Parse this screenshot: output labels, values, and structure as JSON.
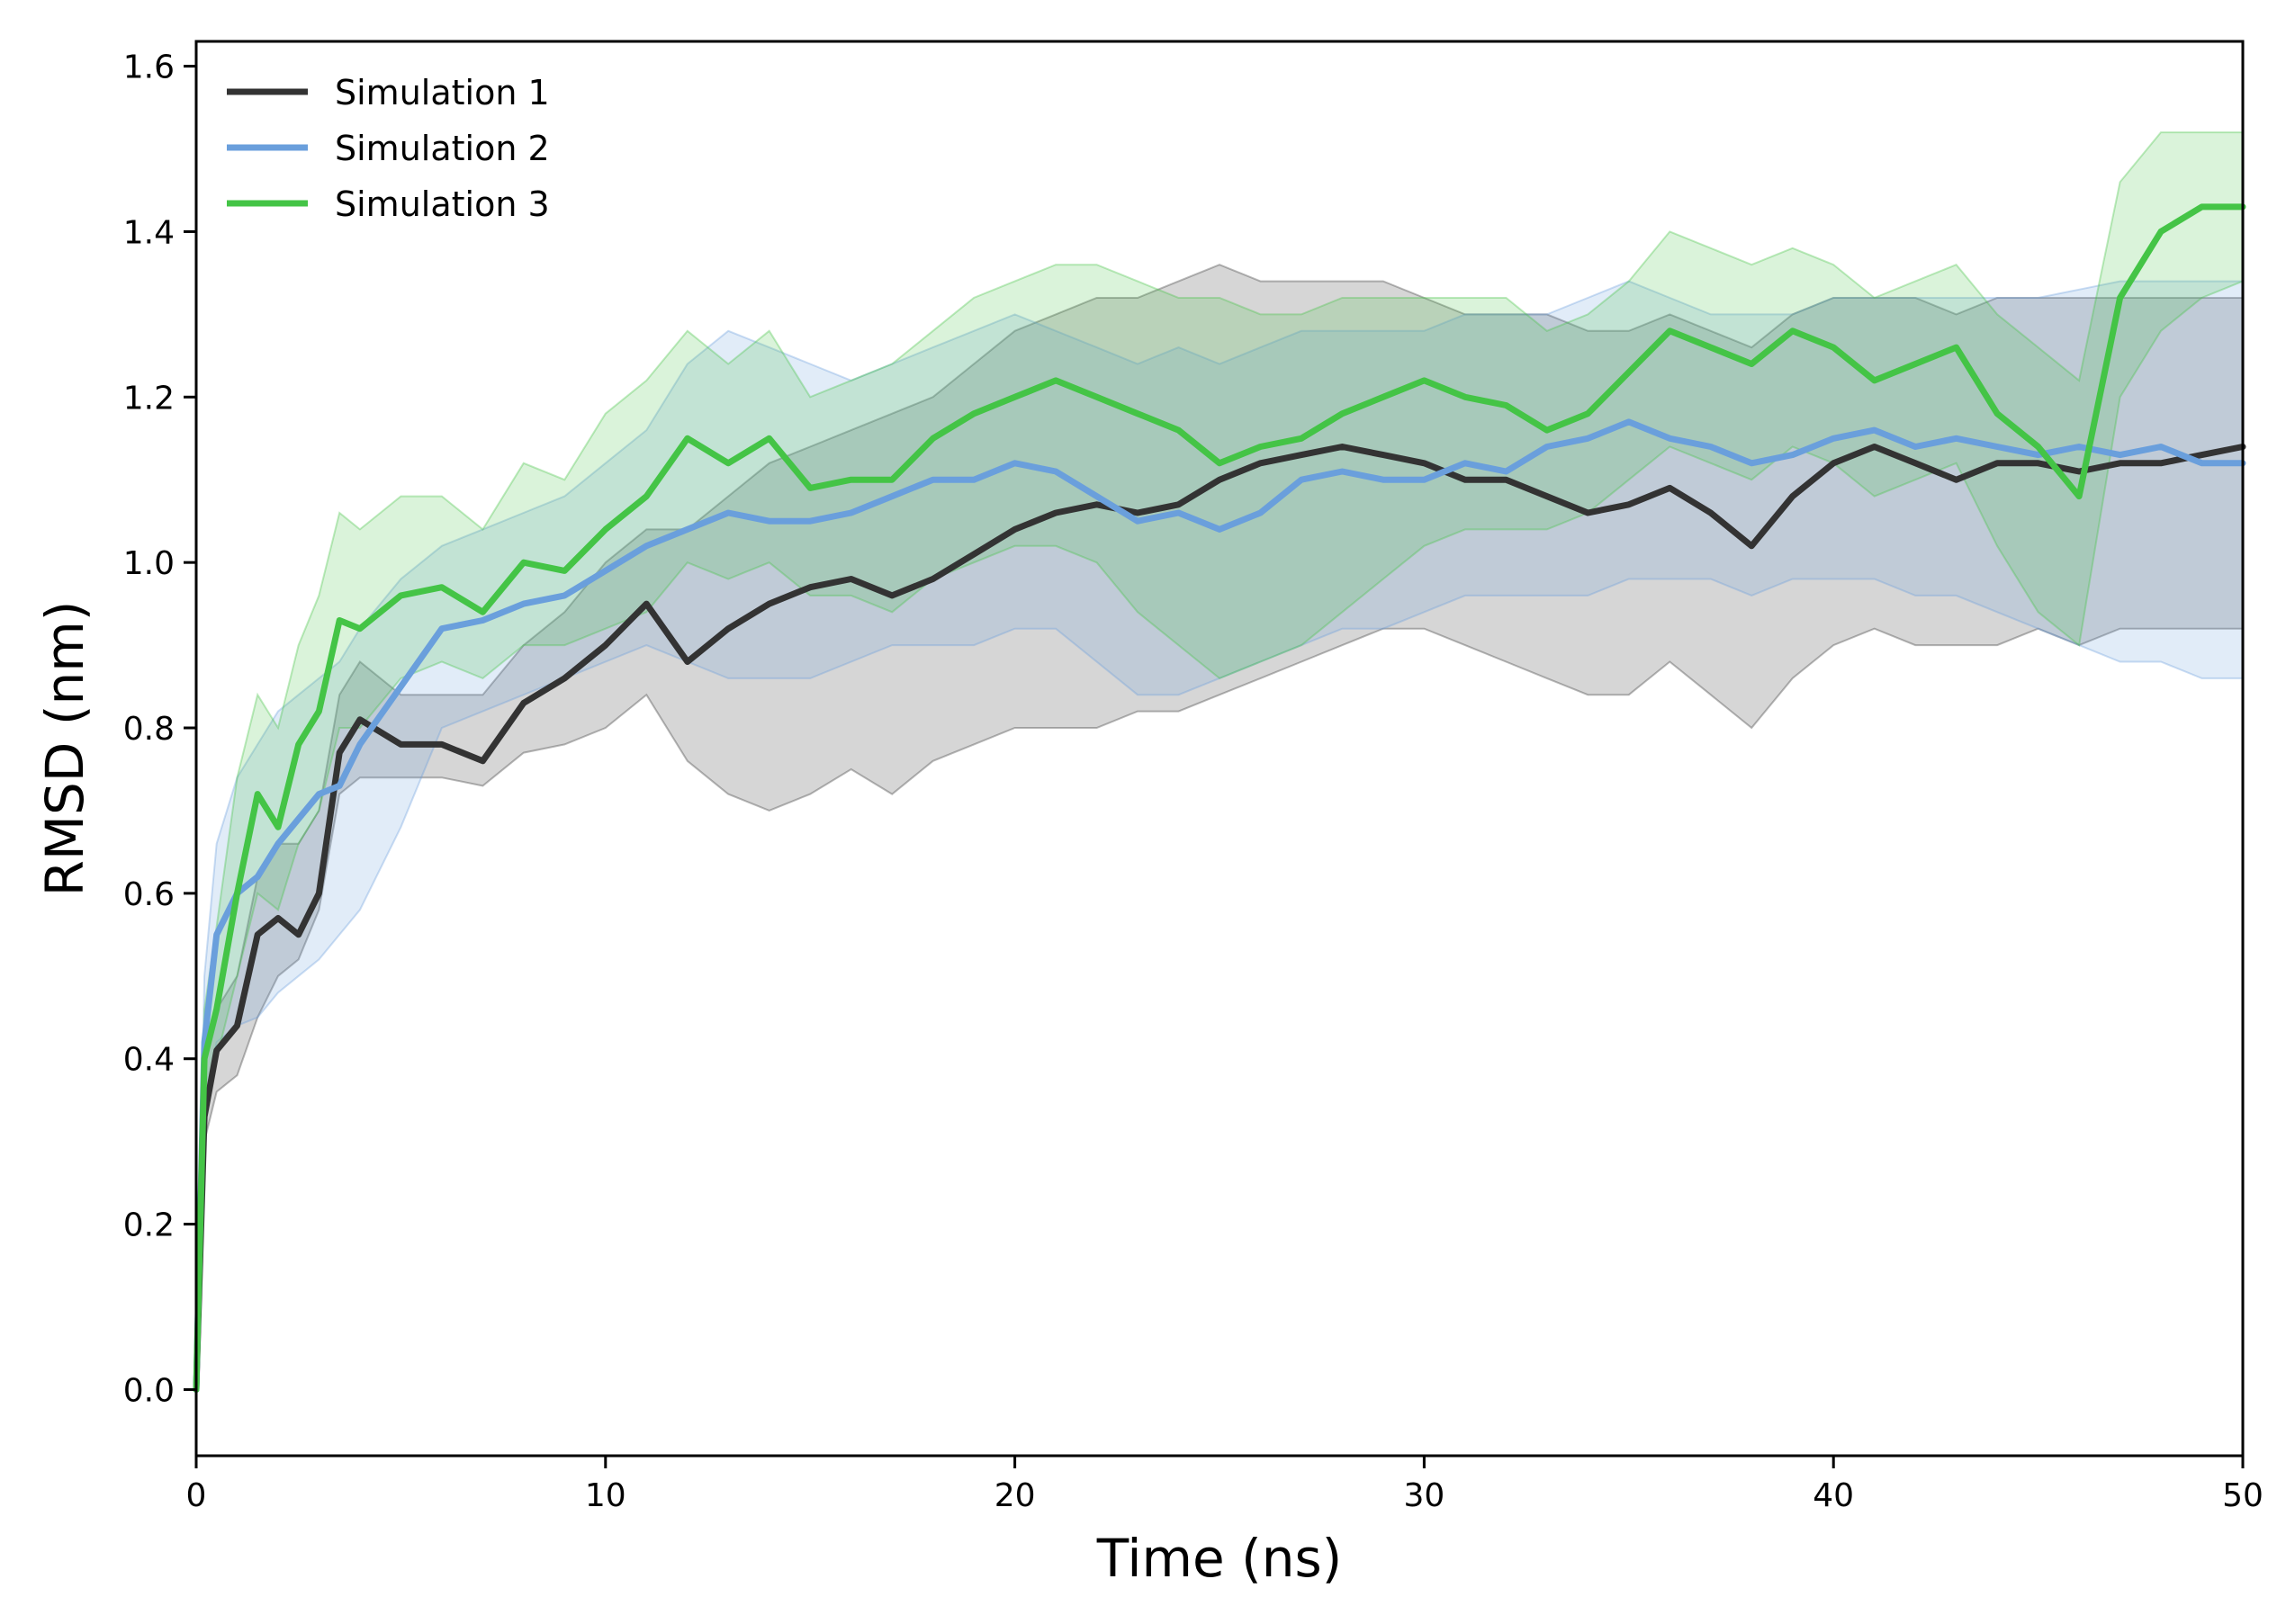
{
  "chart_data": {
    "type": "line",
    "title": "",
    "xlabel": "Time (ns)",
    "ylabel": "RMSD (nm)",
    "xlim": [
      0,
      50
    ],
    "ylim": [
      -0.08,
      1.63
    ],
    "xticks": [
      0,
      10,
      20,
      30,
      40,
      50
    ],
    "xtick_labels": [
      "0",
      "10",
      "20",
      "30",
      "40",
      "50"
    ],
    "yticks": [
      0.0,
      0.2,
      0.4,
      0.6,
      0.8,
      1.0,
      1.2,
      1.4,
      1.6
    ],
    "ytick_labels": [
      "0.0",
      "0.2",
      "0.4",
      "0.6",
      "0.8",
      "1.0",
      "1.2",
      "1.4",
      "1.6"
    ],
    "grid": false,
    "legend_position": "top-left",
    "series": [
      {
        "name": "Simulation 1",
        "color": "#333333",
        "x": [
          0,
          0.2,
          0.5,
          1,
          1.5,
          2,
          2.5,
          3,
          3.5,
          4,
          5,
          6,
          7,
          8,
          9,
          10,
          11,
          12,
          13,
          14,
          15,
          16,
          17,
          18,
          19,
          20,
          21,
          22,
          23,
          24,
          25,
          26,
          27,
          28,
          29,
          30,
          31,
          32,
          33,
          34,
          35,
          36,
          37,
          38,
          39,
          40,
          41,
          42,
          43,
          44,
          45,
          46,
          47,
          48,
          49,
          50
        ],
        "values": [
          0.0,
          0.33,
          0.41,
          0.44,
          0.55,
          0.57,
          0.55,
          0.6,
          0.77,
          0.81,
          0.78,
          0.78,
          0.76,
          0.83,
          0.86,
          0.9,
          0.95,
          0.88,
          0.92,
          0.95,
          0.97,
          0.98,
          0.96,
          0.98,
          1.01,
          1.04,
          1.06,
          1.07,
          1.06,
          1.07,
          1.1,
          1.12,
          1.13,
          1.14,
          1.13,
          1.12,
          1.1,
          1.1,
          1.08,
          1.06,
          1.07,
          1.09,
          1.06,
          1.02,
          1.08,
          1.12,
          1.14,
          1.12,
          1.1,
          1.12,
          1.12,
          1.11,
          1.12,
          1.12,
          1.13,
          1.14
        ],
        "band_lower": [
          0.0,
          0.3,
          0.36,
          0.38,
          0.45,
          0.5,
          0.52,
          0.58,
          0.72,
          0.74,
          0.74,
          0.74,
          0.73,
          0.77,
          0.78,
          0.8,
          0.84,
          0.76,
          0.72,
          0.7,
          0.72,
          0.75,
          0.72,
          0.76,
          0.78,
          0.8,
          0.8,
          0.8,
          0.82,
          0.82,
          0.84,
          0.86,
          0.88,
          0.9,
          0.92,
          0.92,
          0.9,
          0.88,
          0.86,
          0.84,
          0.84,
          0.88,
          0.84,
          0.8,
          0.86,
          0.9,
          0.92,
          0.9,
          0.9,
          0.9,
          0.92,
          0.9,
          0.92,
          0.92,
          0.92,
          0.92
        ],
        "band_upper": [
          0.0,
          0.4,
          0.46,
          0.5,
          0.62,
          0.66,
          0.66,
          0.7,
          0.84,
          0.88,
          0.84,
          0.84,
          0.84,
          0.9,
          0.94,
          1.0,
          1.04,
          1.04,
          1.08,
          1.12,
          1.14,
          1.16,
          1.18,
          1.2,
          1.24,
          1.28,
          1.3,
          1.32,
          1.32,
          1.34,
          1.36,
          1.34,
          1.34,
          1.34,
          1.34,
          1.32,
          1.3,
          1.3,
          1.3,
          1.28,
          1.28,
          1.3,
          1.28,
          1.26,
          1.3,
          1.32,
          1.32,
          1.32,
          1.3,
          1.32,
          1.32,
          1.32,
          1.32,
          1.32,
          1.32,
          1.32
        ]
      },
      {
        "name": "Simulation 2",
        "color": "#6a9fdc",
        "x": [
          0,
          0.2,
          0.5,
          1,
          1.5,
          2,
          2.5,
          3,
          3.5,
          4,
          5,
          6,
          7,
          8,
          9,
          10,
          11,
          12,
          13,
          14,
          15,
          16,
          17,
          18,
          19,
          20,
          21,
          22,
          23,
          24,
          25,
          26,
          27,
          28,
          29,
          30,
          31,
          32,
          33,
          34,
          35,
          36,
          37,
          38,
          39,
          40,
          41,
          42,
          43,
          44,
          45,
          46,
          47,
          48,
          49,
          50
        ],
        "values": [
          0.0,
          0.42,
          0.55,
          0.6,
          0.62,
          0.66,
          0.69,
          0.72,
          0.73,
          0.78,
          0.85,
          0.92,
          0.93,
          0.95,
          0.96,
          0.99,
          1.02,
          1.04,
          1.06,
          1.05,
          1.05,
          1.06,
          1.08,
          1.1,
          1.1,
          1.12,
          1.11,
          1.08,
          1.05,
          1.06,
          1.04,
          1.06,
          1.1,
          1.11,
          1.1,
          1.1,
          1.12,
          1.11,
          1.14,
          1.15,
          1.17,
          1.15,
          1.14,
          1.12,
          1.13,
          1.15,
          1.16,
          1.14,
          1.15,
          1.14,
          1.13,
          1.14,
          1.13,
          1.14,
          1.12,
          1.12
        ],
        "band_lower": [
          0.0,
          0.34,
          0.42,
          0.44,
          0.45,
          0.48,
          0.5,
          0.52,
          0.55,
          0.58,
          0.68,
          0.8,
          0.82,
          0.84,
          0.86,
          0.88,
          0.9,
          0.88,
          0.86,
          0.86,
          0.86,
          0.88,
          0.9,
          0.9,
          0.9,
          0.92,
          0.92,
          0.88,
          0.84,
          0.84,
          0.86,
          0.88,
          0.9,
          0.92,
          0.92,
          0.94,
          0.96,
          0.96,
          0.96,
          0.96,
          0.98,
          0.98,
          0.98,
          0.96,
          0.98,
          0.98,
          0.98,
          0.96,
          0.96,
          0.94,
          0.92,
          0.9,
          0.88,
          0.88,
          0.86,
          0.86
        ],
        "band_upper": [
          0.0,
          0.5,
          0.66,
          0.74,
          0.78,
          0.82,
          0.84,
          0.86,
          0.88,
          0.92,
          0.98,
          1.02,
          1.04,
          1.06,
          1.08,
          1.12,
          1.16,
          1.24,
          1.28,
          1.26,
          1.24,
          1.22,
          1.24,
          1.26,
          1.28,
          1.3,
          1.28,
          1.26,
          1.24,
          1.26,
          1.24,
          1.26,
          1.28,
          1.28,
          1.28,
          1.28,
          1.3,
          1.3,
          1.3,
          1.32,
          1.34,
          1.32,
          1.3,
          1.3,
          1.3,
          1.32,
          1.32,
          1.32,
          1.32,
          1.32,
          1.32,
          1.33,
          1.34,
          1.34,
          1.34,
          1.34
        ]
      },
      {
        "name": "Simulation 3",
        "color": "#44c446",
        "x": [
          0,
          0.2,
          0.5,
          1,
          1.5,
          2,
          2.5,
          3,
          3.5,
          4,
          5,
          6,
          7,
          8,
          9,
          10,
          11,
          12,
          13,
          14,
          15,
          16,
          17,
          18,
          19,
          20,
          21,
          22,
          23,
          24,
          25,
          26,
          27,
          28,
          29,
          30,
          31,
          32,
          33,
          34,
          35,
          36,
          37,
          38,
          39,
          40,
          41,
          42,
          43,
          44,
          45,
          46,
          47,
          48,
          49,
          50
        ],
        "values": [
          0.0,
          0.4,
          0.46,
          0.6,
          0.72,
          0.68,
          0.78,
          0.82,
          0.93,
          0.92,
          0.96,
          0.97,
          0.94,
          1.0,
          0.99,
          1.04,
          1.08,
          1.15,
          1.12,
          1.15,
          1.09,
          1.1,
          1.1,
          1.15,
          1.18,
          1.2,
          1.22,
          1.2,
          1.18,
          1.16,
          1.12,
          1.14,
          1.15,
          1.18,
          1.2,
          1.22,
          1.2,
          1.19,
          1.16,
          1.18,
          1.23,
          1.28,
          1.26,
          1.24,
          1.28,
          1.26,
          1.22,
          1.24,
          1.26,
          1.18,
          1.14,
          1.08,
          1.32,
          1.4,
          1.43,
          1.43
        ],
        "band_lower": [
          0.0,
          0.34,
          0.4,
          0.5,
          0.6,
          0.58,
          0.66,
          0.7,
          0.8,
          0.8,
          0.86,
          0.88,
          0.86,
          0.9,
          0.9,
          0.92,
          0.94,
          1.0,
          0.98,
          1.0,
          0.96,
          0.96,
          0.94,
          0.98,
          1.0,
          1.02,
          1.02,
          1.0,
          0.94,
          0.9,
          0.86,
          0.88,
          0.9,
          0.94,
          0.98,
          1.02,
          1.04,
          1.04,
          1.04,
          1.06,
          1.1,
          1.14,
          1.12,
          1.1,
          1.14,
          1.12,
          1.08,
          1.1,
          1.12,
          1.02,
          0.94,
          0.9,
          1.2,
          1.28,
          1.32,
          1.34
        ],
        "band_upper": [
          0.0,
          0.46,
          0.56,
          0.74,
          0.84,
          0.8,
          0.9,
          0.96,
          1.06,
          1.04,
          1.08,
          1.08,
          1.04,
          1.12,
          1.1,
          1.18,
          1.22,
          1.28,
          1.24,
          1.28,
          1.2,
          1.22,
          1.24,
          1.28,
          1.32,
          1.34,
          1.36,
          1.36,
          1.34,
          1.32,
          1.32,
          1.3,
          1.3,
          1.32,
          1.32,
          1.32,
          1.32,
          1.32,
          1.28,
          1.3,
          1.34,
          1.4,
          1.38,
          1.36,
          1.38,
          1.36,
          1.32,
          1.34,
          1.36,
          1.3,
          1.26,
          1.22,
          1.46,
          1.52,
          1.52,
          1.52
        ]
      }
    ]
  }
}
